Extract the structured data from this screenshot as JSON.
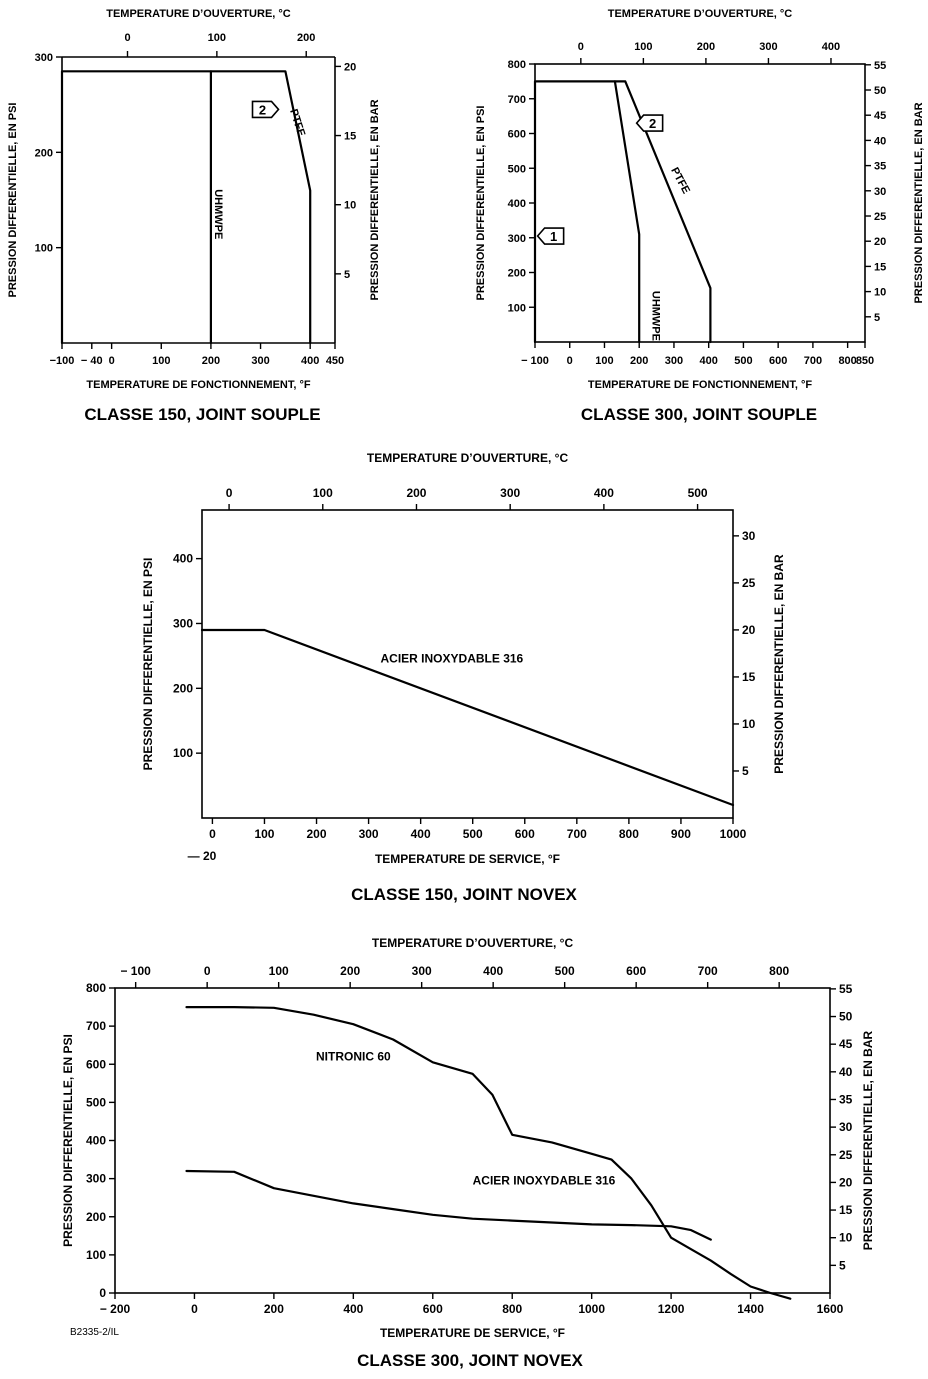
{
  "figure_code": "B2335-2/IL",
  "chart_data": [
    {
      "type": "line",
      "title": "CLASSE 150, JOINT SOUPLE",
      "xlabel": "TEMPERATURE DE FONCTIONNEMENT, °F",
      "x2label": "TEMPERATURE D’OUVERTURE, °C",
      "ylabel": "PRESSION DIFFERENTIELLE, EN PSI",
      "y2label": "PRESSION DIFFERENTIELLE, EN BAR",
      "xlim": [
        -100,
        450
      ],
      "ylim": [
        0,
        300
      ],
      "x2lim": [
        -73.3,
        232.2
      ],
      "y2lim": [
        0,
        20.68
      ],
      "xticks": [
        "−100",
        "− 40",
        "0",
        "100",
        "200",
        "300",
        "400",
        "450"
      ],
      "xtick_values": [
        -100,
        -40,
        0,
        100,
        200,
        300,
        400,
        450
      ],
      "yticks": [
        "100",
        "200",
        "300"
      ],
      "ytick_values": [
        100,
        200,
        300
      ],
      "x2ticks": [
        "0",
        "100",
        "200"
      ],
      "x2tick_values": [
        0,
        100,
        200
      ],
      "y2ticks": [
        "5",
        "10",
        "15",
        "20"
      ],
      "y2tick_values": [
        5,
        10,
        15,
        20
      ],
      "series": [
        {
          "name": "UHMWPE",
          "x": [
            -100,
            -100,
            200,
            200
          ],
          "y": [
            0,
            285,
            285,
            0
          ]
        },
        {
          "name": "PTFE",
          "x": [
            200,
            350,
            400,
            400
          ],
          "y": [
            285,
            285,
            160,
            0
          ]
        }
      ],
      "annotations": [
        {
          "text": "UHMWPE",
          "x": 208,
          "y": 135,
          "rotate": 90
        },
        {
          "text": "PTFE",
          "x": 368,
          "y": 230,
          "rotate": 72
        },
        {
          "text": "2",
          "x": 310,
          "y": 245,
          "type": "callout"
        }
      ]
    },
    {
      "type": "line",
      "title": "CLASSE 300, JOINT SOUPLE",
      "xlabel": "TEMPERATURE DE FONCTIONNEMENT, °F",
      "x2label": "TEMPERATURE D’OUVERTURE, °C",
      "ylabel": "PRESSION DIFFERENTIELLE, EN PSI",
      "y2label": "PRESSION DIFFERENTIELLE, EN BAR",
      "xlim": [
        -100,
        850
      ],
      "ylim": [
        0,
        800
      ],
      "x2lim": [
        -73.3,
        454.4
      ],
      "y2lim": [
        0,
        55.16
      ],
      "xticks": [
        "− 100",
        "0",
        "100",
        "200",
        "300",
        "400",
        "500",
        "600",
        "700",
        "800",
        "850"
      ],
      "xtick_values": [
        -100,
        0,
        100,
        200,
        300,
        400,
        500,
        600,
        700,
        800,
        850
      ],
      "yticks": [
        "100",
        "200",
        "300",
        "400",
        "500",
        "600",
        "700",
        "800"
      ],
      "ytick_values": [
        100,
        200,
        300,
        400,
        500,
        600,
        700,
        800
      ],
      "x2ticks": [
        "0",
        "100",
        "200",
        "300",
        "400"
      ],
      "x2tick_values": [
        0,
        100,
        200,
        300,
        400
      ],
      "y2ticks": [
        "5",
        "10",
        "15",
        "20",
        "25",
        "30",
        "35",
        "40",
        "45",
        "50",
        "55"
      ],
      "y2tick_values": [
        5,
        10,
        15,
        20,
        25,
        30,
        35,
        40,
        45,
        50,
        55
      ],
      "series": [
        {
          "name": "UHMWPE",
          "x": [
            -100,
            -100,
            130,
            200,
            200
          ],
          "y": [
            0,
            750,
            750,
            310,
            0
          ]
        },
        {
          "name": "PTFE",
          "x": [
            130,
            160,
            405,
            405
          ],
          "y": [
            750,
            750,
            155,
            0
          ]
        }
      ],
      "annotations": [
        {
          "text": "UHMWPE",
          "x": 238,
          "y": 75,
          "rotate": 90
        },
        {
          "text": "PTFE",
          "x": 310,
          "y": 460,
          "rotate": 62
        },
        {
          "text": "1",
          "x": -55,
          "y": 305,
          "type": "callout"
        },
        {
          "text": "2",
          "x": 230,
          "y": 630,
          "type": "callout"
        }
      ]
    },
    {
      "type": "line",
      "title": "CLASSE 150, JOINT NOVEX",
      "xlabel": "TEMPERATURE DE SERVICE, °F",
      "x2label": "TEMPERATURE D’OUVERTURE, °C",
      "ylabel": "PRESSION DIFFERENTIELLE, EN PSI",
      "y2label": "PRESSION DIFFERENTIELLE, EN BAR",
      "xlim": [
        -20,
        1000
      ],
      "ylim": [
        0,
        475
      ],
      "x2lim": [
        -28.9,
        537.8
      ],
      "y2lim": [
        0,
        32.75
      ],
      "xticks": [
        "0",
        "100",
        "200",
        "300",
        "400",
        "500",
        "600",
        "700",
        "800",
        "900",
        "1000"
      ],
      "xtick_values": [
        0,
        100,
        200,
        300,
        400,
        500,
        600,
        700,
        800,
        900,
        1000
      ],
      "xtick_extra": "— 20",
      "yticks": [
        "100",
        "200",
        "300",
        "400"
      ],
      "ytick_values": [
        100,
        200,
        300,
        400
      ],
      "x2ticks": [
        "0",
        "100",
        "200",
        "300",
        "400",
        "500"
      ],
      "x2tick_values": [
        0,
        100,
        200,
        300,
        400,
        500
      ],
      "y2ticks": [
        "5",
        "10",
        "15",
        "20",
        "25",
        "30"
      ],
      "y2tick_values": [
        5,
        10,
        15,
        20,
        25,
        30
      ],
      "series": [
        {
          "name": "ACIER INOXYDABLE 316",
          "x": [
            -20,
            100,
            1000
          ],
          "y": [
            290,
            290,
            20
          ]
        }
      ],
      "annotations": [
        {
          "text": "ACIER INOXYDABLE 316",
          "x": 460,
          "y": 240
        }
      ]
    },
    {
      "type": "line",
      "title": "CLASSE 300, JOINT NOVEX",
      "xlabel": "TEMPERATURE DE SERVICE, °F",
      "x2label": "TEMPERATURE D’OUVERTURE, °C",
      "ylabel": "PRESSION DIFFERENTIELLE, EN PSI",
      "y2label": "PRESSION DIFFERENTIELLE, EN BAR",
      "xlim": [
        -200,
        1600
      ],
      "ylim": [
        0,
        800
      ],
      "x2lim": [
        -128.9,
        871.1
      ],
      "y2lim": [
        0,
        55.16
      ],
      "xticks": [
        "− 200",
        "0",
        "200",
        "400",
        "600",
        "800",
        "1000",
        "1200",
        "1400",
        "1600"
      ],
      "xtick_values": [
        -200,
        0,
        200,
        400,
        600,
        800,
        1000,
        1200,
        1400,
        1600
      ],
      "yticks": [
        "0",
        "100",
        "200",
        "300",
        "400",
        "500",
        "600",
        "700",
        "800"
      ],
      "ytick_values": [
        0,
        100,
        200,
        300,
        400,
        500,
        600,
        700,
        800
      ],
      "x2ticks": [
        "− 100",
        "0",
        "100",
        "200",
        "300",
        "400",
        "500",
        "600",
        "700",
        "800"
      ],
      "x2tick_values": [
        -100,
        0,
        100,
        200,
        300,
        400,
        500,
        600,
        700,
        800
      ],
      "y2ticks": [
        "5",
        "10",
        "15",
        "20",
        "25",
        "30",
        "35",
        "40",
        "45",
        "50",
        "55"
      ],
      "y2tick_values": [
        5,
        10,
        15,
        20,
        25,
        30,
        35,
        40,
        45,
        50,
        55
      ],
      "series": [
        {
          "name": "NITRONIC 60",
          "x": [
            -20,
            100,
            200,
            300,
            400,
            500,
            600,
            700,
            750,
            800,
            900,
            1000,
            1050,
            1100,
            1150,
            1200,
            1250,
            1300,
            1350,
            1400,
            1450,
            1500
          ],
          "y": [
            750,
            750,
            748,
            730,
            705,
            665,
            605,
            575,
            520,
            415,
            395,
            365,
            350,
            300,
            230,
            145,
            115,
            85,
            50,
            17,
            0,
            -15
          ]
        },
        {
          "name": "ACIER INOXYDABLE 316",
          "x": [
            -20,
            100,
            200,
            300,
            400,
            500,
            600,
            700,
            800,
            900,
            1000,
            1100,
            1200,
            1250,
            1300
          ],
          "y": [
            320,
            318,
            275,
            255,
            235,
            220,
            205,
            195,
            190,
            185,
            180,
            178,
            175,
            165,
            140
          ]
        }
      ],
      "annotations": [
        {
          "text": "NITRONIC 60",
          "x": 400,
          "y": 610
        },
        {
          "text": "ACIER INOXYDABLE 316",
          "x": 880,
          "y": 285
        }
      ]
    }
  ]
}
